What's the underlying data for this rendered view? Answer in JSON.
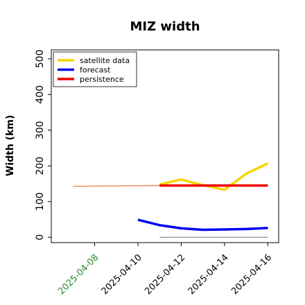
{
  "chart_data": {
    "type": "line",
    "title": "MIZ width",
    "xlabel": "",
    "ylabel": "Width (km)",
    "ylim": [
      -15,
      525
    ],
    "xlim": [
      "2025-04-06",
      "2025-04-16T12:00"
    ],
    "yticks": [
      0,
      100,
      200,
      300,
      400,
      500
    ],
    "xticks": [
      {
        "label": "2025-04-08",
        "value": "2025-04-08",
        "color": "#2e8b2e"
      },
      {
        "label": "2025-04-10",
        "value": "2025-04-10",
        "color": "#000000"
      },
      {
        "label": "2025-04-12",
        "value": "2025-04-12",
        "color": "#000000"
      },
      {
        "label": "2025-04-14",
        "value": "2025-04-14",
        "color": "#000000"
      },
      {
        "label": "2025-04-16",
        "value": "2025-04-16",
        "color": "#000000"
      }
    ],
    "grid": false,
    "legend": "top-left",
    "series": [
      {
        "name": "satellite data",
        "color": "#f5d400",
        "x": [
          "2025-04-11",
          "2025-04-12",
          "2025-04-13",
          "2025-04-14",
          "2025-04-15",
          "2025-04-16"
        ],
        "values": [
          148,
          162,
          146,
          133,
          178,
          207
        ]
      },
      {
        "name": "forecast",
        "color": "#0000ee",
        "x": [
          "2025-04-10",
          "2025-04-11",
          "2025-04-12",
          "2025-04-13",
          "2025-04-14",
          "2025-04-15",
          "2025-04-16"
        ],
        "values": [
          49,
          34,
          25,
          21,
          22,
          23,
          26
        ]
      },
      {
        "name": "persistence",
        "color": "#ee0000",
        "x": [
          "2025-04-11",
          "2025-04-16"
        ],
        "values": [
          145,
          145
        ]
      }
    ],
    "extra_lines": [
      {
        "kind": "satellite history",
        "color": "#e87a3a",
        "x": [
          "2025-04-07",
          "2025-04-11"
        ],
        "values": [
          143,
          145
        ]
      },
      {
        "kind": "zero reference",
        "color": "#808080",
        "x": [
          "2025-04-11",
          "2025-04-16"
        ],
        "values": [
          0,
          0
        ]
      }
    ]
  }
}
